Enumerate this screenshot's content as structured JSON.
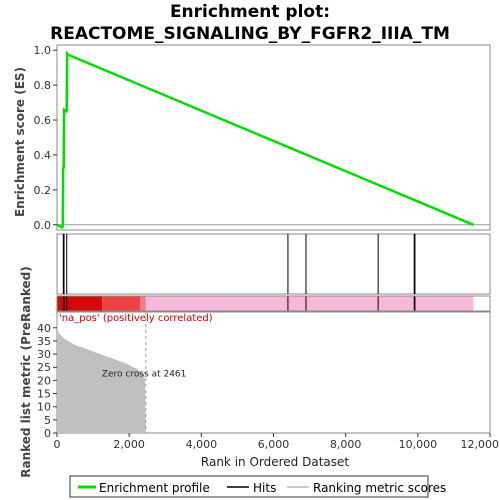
{
  "chart_data": {
    "type": "line",
    "title_line1": "Enrichment plot:",
    "title_line2": "REACTOME_SIGNALING_BY_FGFR2_IIIA_TM",
    "es_panel": {
      "ylabel": "Enrichment score (ES)",
      "ylim": [
        -0.03,
        1.03
      ],
      "yticks": [
        "0.0",
        "0.2",
        "0.4",
        "0.6",
        "0.8",
        "1.0"
      ],
      "ytick_values": [
        0.0,
        0.2,
        0.4,
        0.6,
        0.8,
        1.0
      ],
      "series": [
        {
          "name": "Enrichment profile",
          "color": "#00dd00",
          "x": [
            0,
            140,
            160,
            170,
            175,
            185,
            195,
            260,
            270,
            280,
            300,
            11540
          ],
          "y": [
            0.0,
            -0.015,
            -0.01,
            0.33,
            0.32,
            0.33,
            0.66,
            0.65,
            0.66,
            0.98,
            0.975,
            0.0
          ]
        }
      ]
    },
    "hits": [
      175,
      195,
      270,
      6400,
      6900,
      8900,
      9900,
      9920
    ],
    "color_bar": {
      "segments": [
        {
          "from": 0,
          "to": 1250,
          "color": "#d40a0a"
        },
        {
          "from": 1250,
          "to": 2300,
          "color": "#ee4444"
        },
        {
          "from": 2300,
          "to": 2461,
          "color": "#f47a8a"
        },
        {
          "from": 2461,
          "to": 11540,
          "color": "#f8b8dc"
        }
      ]
    },
    "rank_panel": {
      "ylabel": "Ranked list metric (PreRanked)",
      "xlabel": "Rank in Ordered Dataset",
      "ylim": [
        0,
        46
      ],
      "yticks": [
        "0",
        "5",
        "10",
        "15",
        "20",
        "25",
        "30",
        "35",
        "40"
      ],
      "ytick_values": [
        0,
        5,
        10,
        15,
        20,
        25,
        30,
        35,
        40
      ],
      "xticks": [
        "0",
        "2,000",
        "4,000",
        "6,000",
        "8,000",
        "10,000",
        "12,000"
      ],
      "xtick_values": [
        0,
        2000,
        4000,
        6000,
        8000,
        10000,
        12000
      ],
      "metric_x": [
        0,
        10,
        50,
        150,
        300,
        500,
        800,
        1100,
        1500,
        1900,
        2200,
        2400,
        2440,
        2461
      ],
      "metric_y": [
        44,
        40,
        38,
        36.5,
        35,
        33.5,
        32,
        30.5,
        28.5,
        26.5,
        24.5,
        22.5,
        20,
        0
      ],
      "zero_cross_label": "Zero cross at 2461",
      "zero_cross_x": 2461,
      "pos_label": "'na_pos' (positively correlated)"
    },
    "xlim": [
      0,
      12000
    ]
  },
  "legend": {
    "items": [
      {
        "label": "Enrichment profile",
        "color": "#00dd00"
      },
      {
        "label": "Hits",
        "color": "#000000"
      },
      {
        "label": "Ranking metric scores",
        "color": "#bbbbbb"
      }
    ]
  },
  "colors": {
    "frame": "#888888",
    "zero_line": "#999999",
    "metric_fill": "#c0c0c0"
  }
}
